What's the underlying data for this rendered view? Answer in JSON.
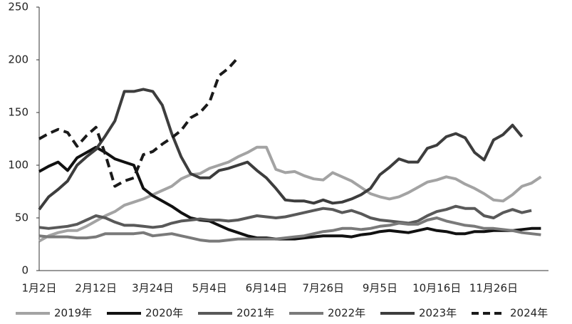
{
  "chart_data": {
    "type": "line",
    "categories": [
      "1月2日",
      null,
      null,
      null,
      null,
      null,
      "2月12日",
      null,
      null,
      null,
      null,
      null,
      "3月24日",
      null,
      null,
      null,
      null,
      null,
      "5月4日",
      null,
      null,
      null,
      null,
      null,
      "6月14日",
      null,
      null,
      null,
      null,
      null,
      "7月26日",
      null,
      null,
      null,
      null,
      null,
      "9月5日",
      null,
      null,
      null,
      null,
      null,
      "10月16日",
      null,
      null,
      null,
      null,
      null,
      "11月26日",
      null,
      null,
      null,
      null,
      null
    ],
    "ylim": [
      0,
      250
    ],
    "yticks": [
      0,
      50,
      100,
      150,
      200,
      250
    ],
    "grid": false,
    "legend": "bottom",
    "series": [
      {
        "name": "2019年",
        "color": "#a3a3a3",
        "dash": false,
        "values": [
          28,
          33,
          36,
          38,
          38,
          42,
          47,
          52,
          56,
          62,
          65,
          68,
          72,
          76,
          80,
          87,
          91,
          92,
          97,
          100,
          103,
          108,
          112,
          117,
          117,
          96,
          93,
          94,
          90,
          87,
          86,
          93,
          89,
          85,
          79,
          73,
          70,
          68,
          70,
          74,
          79,
          84,
          86,
          89,
          87,
          82,
          78,
          73,
          67,
          66,
          72,
          80,
          83,
          89
        ]
      },
      {
        "name": "2020年",
        "color": "#111111",
        "dash": false,
        "values": [
          94,
          99,
          103,
          95,
          107,
          112,
          117,
          112,
          106,
          103,
          100,
          78,
          71,
          66,
          61,
          55,
          50,
          48,
          47,
          43,
          39,
          36,
          33,
          31,
          31,
          30,
          30,
          30,
          31,
          32,
          33,
          33,
          33,
          32,
          34,
          35,
          37,
          38,
          37,
          36,
          38,
          40,
          38,
          37,
          35,
          35,
          37,
          37,
          38,
          38,
          38,
          39,
          40,
          40
        ]
      },
      {
        "name": "2021年",
        "color": "#595959",
        "dash": false,
        "values": [
          41,
          40,
          41,
          42,
          44,
          48,
          52,
          50,
          46,
          43,
          43,
          42,
          41,
          42,
          45,
          47,
          48,
          49,
          48,
          48,
          47,
          48,
          50,
          52,
          51,
          50,
          51,
          53,
          55,
          57,
          59,
          58,
          55,
          57,
          54,
          50,
          48,
          47,
          46,
          45,
          47,
          52,
          56,
          58,
          61,
          59,
          59,
          52,
          50,
          55,
          58,
          55,
          57,
          null
        ]
      },
      {
        "name": "2022年",
        "color": "#7a7a7a",
        "dash": false,
        "values": [
          33,
          32,
          32,
          32,
          31,
          31,
          32,
          35,
          35,
          35,
          35,
          36,
          33,
          34,
          35,
          33,
          31,
          29,
          28,
          28,
          29,
          30,
          30,
          30,
          30,
          30,
          31,
          32,
          33,
          35,
          37,
          38,
          40,
          40,
          39,
          40,
          42,
          43,
          45,
          44,
          44,
          48,
          50,
          47,
          45,
          43,
          42,
          40,
          40,
          39,
          38,
          36,
          35,
          34
        ]
      },
      {
        "name": "2023年",
        "color": "#3d3d3d",
        "dash": false,
        "values": [
          58,
          70,
          77,
          85,
          100,
          108,
          115,
          128,
          142,
          170,
          170,
          172,
          170,
          157,
          130,
          108,
          92,
          88,
          88,
          95,
          97,
          100,
          103,
          95,
          88,
          78,
          67,
          66,
          66,
          64,
          67,
          64,
          65,
          68,
          72,
          78,
          91,
          98,
          106,
          103,
          103,
          116,
          119,
          127,
          130,
          126,
          112,
          105,
          124,
          129,
          138,
          127,
          null,
          null
        ]
      },
      {
        "name": "2024年",
        "color": "#1a1a1a",
        "dash": true,
        "values": [
          125,
          130,
          134,
          131,
          118,
          128,
          136,
          110,
          80,
          85,
          88,
          110,
          113,
          120,
          126,
          133,
          145,
          150,
          160,
          185,
          192,
          202,
          null,
          null,
          null,
          null,
          null,
          null,
          null,
          null,
          null,
          null,
          null,
          null,
          null,
          null,
          null,
          null,
          null,
          null,
          null,
          null,
          null,
          null,
          null,
          null,
          null,
          null,
          null,
          null,
          null,
          null,
          null,
          null
        ]
      }
    ]
  }
}
